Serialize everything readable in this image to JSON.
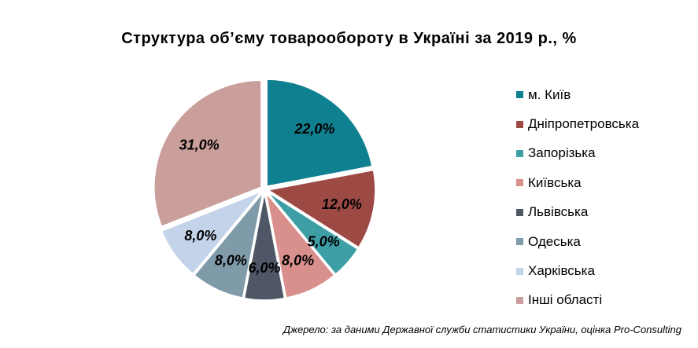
{
  "chart_data": {
    "type": "pie",
    "title": "Структура  об’єму  товарообороту  в Україні  за 2019 р., %",
    "categories": [
      "м. Київ",
      "Дніпропетровська",
      "Запорізька",
      "Київська",
      "Львівська",
      "Одеська",
      "Харківська",
      "Інші області"
    ],
    "values": [
      22.0,
      12.0,
      5.0,
      8.0,
      6.0,
      8.0,
      8.0,
      31.0
    ],
    "value_labels": [
      "22,0%",
      "12,0%",
      "5,0%",
      "8,0%",
      "6,0%",
      "8,0%",
      "8,0%",
      "31,0%"
    ],
    "colors": [
      "#0f8090",
      "#9e4a44",
      "#3d9ea6",
      "#d9908c",
      "#4f5766",
      "#7f9aa8",
      "#c3d4ea",
      "#c99e9b"
    ],
    "legend_position": "right",
    "exploded": true
  },
  "source_note": "Джерело: за даними Державної служби статистики України, оцінка Pro-Consulting"
}
